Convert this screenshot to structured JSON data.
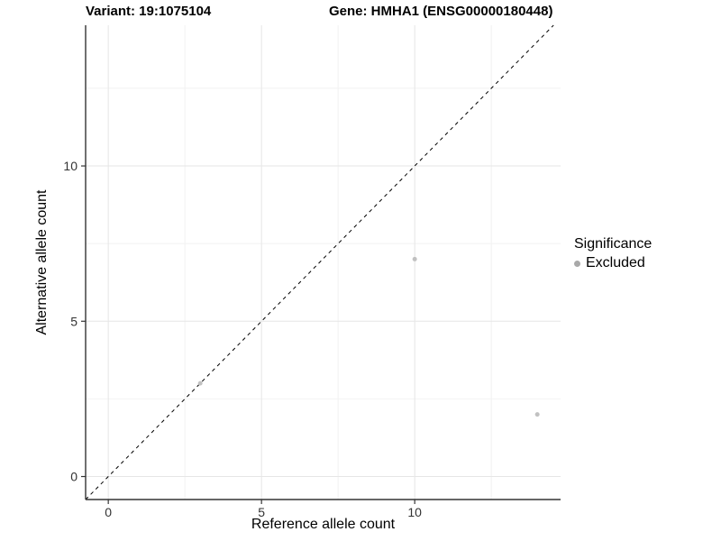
{
  "chart_data": {
    "type": "scatter",
    "title_left": "Variant: 19:1075104",
    "title_right": "Gene: HMHA1 (ENSG00000180448)",
    "xlabel": "Reference allele count",
    "ylabel": "Alternative allele count",
    "xlim": [
      -0.74,
      14.76
    ],
    "ylim": [
      -0.74,
      14.53
    ],
    "x_major_ticks": [
      0,
      5,
      10
    ],
    "y_major_ticks": [
      0,
      5,
      10
    ],
    "x_minor_gridlines": [
      2.5,
      7.5,
      12.5
    ],
    "y_minor_gridlines": [
      2.5,
      7.5,
      12.5
    ],
    "grid": true,
    "series": [
      {
        "name": "Excluded",
        "color": "#c1c1c1",
        "points": [
          {
            "x": 3,
            "y": 3
          },
          {
            "x": 10,
            "y": 7
          },
          {
            "x": 14,
            "y": 2
          }
        ]
      }
    ],
    "reference_line": {
      "type": "identity",
      "style": "dashed",
      "color": "#000000"
    },
    "legend": {
      "position": "right",
      "title": "Significance",
      "items": [
        {
          "label": "Excluded",
          "color": "#a9a9a9"
        }
      ]
    },
    "colors": {
      "background": "#ffffff",
      "major_grid": "#e6e6e6",
      "minor_grid": "#f2f2f2",
      "axis_line": "#333333",
      "tick_mark": "#333333",
      "tick_label": "#333333",
      "title": "#000000"
    }
  }
}
